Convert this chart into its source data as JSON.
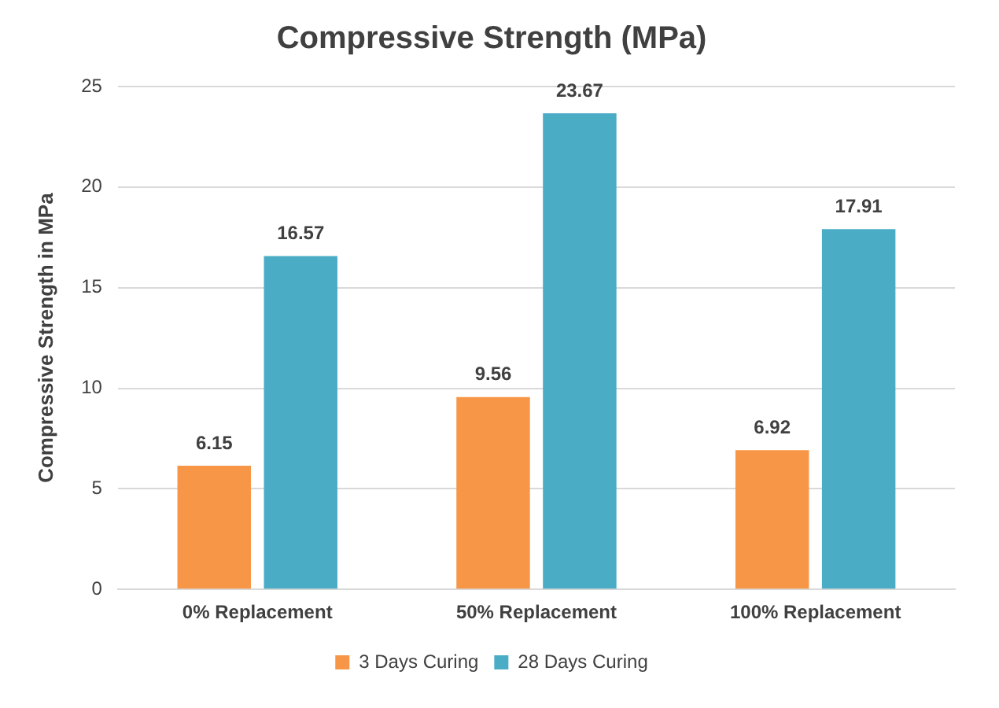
{
  "chart_data": {
    "type": "bar",
    "title": "Compressive Strength (MPa)",
    "ylabel": "Compressive Strength in MPa",
    "categories": [
      "0% Replacement",
      "50% Replacement",
      "100% Replacement"
    ],
    "series": [
      {
        "name": "3 Days Curing",
        "color": "#f79646",
        "values": [
          6.15,
          9.56,
          6.92
        ]
      },
      {
        "name": "28 Days Curing",
        "color": "#4bacc6",
        "values": [
          16.57,
          23.67,
          17.91
        ]
      }
    ],
    "ylim": [
      0,
      25
    ],
    "yticks": [
      0,
      5,
      10,
      15,
      20,
      25
    ],
    "grid": "y",
    "legend": "bottom",
    "data_labels": true
  }
}
